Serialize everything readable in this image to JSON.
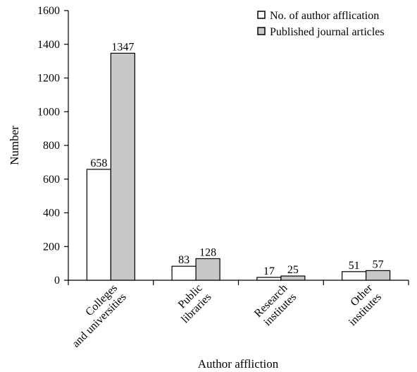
{
  "chart_data": {
    "type": "bar",
    "categories": [
      [
        "Colleges",
        "and universities"
      ],
      [
        "Public",
        "libraries"
      ],
      [
        "Research",
        "institutes"
      ],
      [
        "Other",
        "institutes"
      ]
    ],
    "series": [
      {
        "name": "No. of author afflication",
        "values": [
          658,
          83,
          17,
          51
        ],
        "color": "#ffffff"
      },
      {
        "name": "Published journal articles",
        "values": [
          1347,
          128,
          25,
          57
        ],
        "color": "#c8c8c8"
      }
    ],
    "data_labels": [
      [
        "658",
        "83",
        "17",
        "51"
      ],
      [
        "1347",
        "128",
        "25",
        "57"
      ]
    ],
    "xlabel": "Author affliction",
    "ylabel": "Number",
    "ylim": [
      0,
      1600
    ],
    "yticks": [
      0,
      200,
      400,
      600,
      800,
      1000,
      1200,
      1400,
      1600
    ],
    "grid": false,
    "legend_position": "top-right"
  }
}
